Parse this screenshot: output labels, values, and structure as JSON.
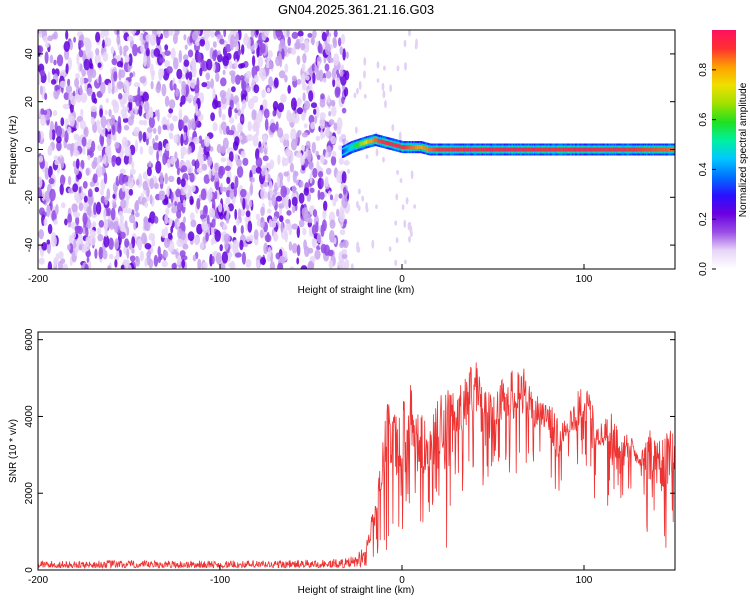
{
  "title": "GN04.2025.361.21.16.G03",
  "colors": {
    "snr_line": "#ee3333",
    "colorbar_stops": [
      "#ffffff",
      "#e8d6f8",
      "#9a4fe6",
      "#6a00e0",
      "#2a10ff",
      "#0070ff",
      "#00c8ff",
      "#00f0a0",
      "#20e020",
      "#a0e000",
      "#f0e000",
      "#ffa000",
      "#ff3030",
      "#ff1060"
    ]
  },
  "colorbar": {
    "label": "Normalized spectral amplitude",
    "ticks": [
      0.0,
      0.2,
      0.4,
      0.6,
      0.8
    ],
    "tick_labels": [
      "0.0",
      "0.2",
      "0.4",
      "0.6",
      "0.8"
    ],
    "range": [
      0,
      0.96
    ]
  },
  "chart_data": [
    {
      "type": "heatmap",
      "title": "GN04.2025.361.21.16.G03",
      "xlabel": "Height of straight line (km)",
      "ylabel": "Frequency (Hz)",
      "xlim": [
        -200,
        150
      ],
      "ylim": [
        -50,
        50
      ],
      "xticks": [
        -200,
        -100,
        0,
        100
      ],
      "xtick_labels": [
        "-200",
        "-100",
        "0",
        "100"
      ],
      "yticks": [
        -40,
        -20,
        0,
        20,
        40
      ],
      "ytick_labels": [
        "-40",
        "-20",
        "0",
        "20",
        "40"
      ],
      "noise_region_x": [
        -200,
        -30
      ],
      "signal_track": {
        "x": [
          -33,
          -28,
          -20,
          -15,
          -10,
          -5,
          0,
          5,
          10,
          15,
          20,
          40,
          60,
          80,
          100,
          120,
          150
        ],
        "y": [
          -1,
          1,
          3,
          4,
          3,
          2,
          1,
          1,
          1,
          0,
          0,
          0,
          0,
          0,
          0,
          0,
          0
        ],
        "amplitude": [
          0.3,
          0.5,
          0.75,
          0.85,
          0.9,
          0.9,
          0.9,
          0.85,
          0.8,
          0.85,
          0.9,
          0.92,
          0.93,
          0.9,
          0.92,
          0.9,
          0.85
        ]
      }
    },
    {
      "type": "line",
      "xlabel": "Height of straight line (km)",
      "ylabel": "SNR (10 * v/v)",
      "xlim": [
        -200,
        150
      ],
      "ylim": [
        0,
        6200
      ],
      "xticks": [
        -200,
        -100,
        0,
        100
      ],
      "xtick_labels": [
        "-200",
        "-100",
        "0",
        "100"
      ],
      "yticks": [
        0,
        2000,
        4000,
        6000
      ],
      "ytick_labels": [
        "0",
        "2000",
        "4000",
        "6000"
      ],
      "series": [
        {
          "x": [
            -200,
            -180,
            -160,
            -140,
            -120,
            -100,
            -80,
            -60,
            -40,
            -30,
            -25,
            -20,
            -15,
            -12,
            -10,
            -8,
            -5,
            -2,
            0,
            2,
            5,
            8,
            10,
            15,
            20,
            25,
            30,
            35,
            40,
            45,
            50,
            55,
            60,
            65,
            70,
            75,
            80,
            85,
            90,
            95,
            100,
            105,
            110,
            115,
            120,
            125,
            130,
            135,
            140,
            145,
            150
          ],
          "values": [
            250,
            230,
            260,
            240,
            250,
            240,
            250,
            260,
            280,
            320,
            400,
            700,
            1800,
            2800,
            3600,
            4800,
            4200,
            3900,
            4600,
            4300,
            4900,
            4400,
            4100,
            3800,
            4500,
            4700,
            4600,
            5200,
            5600,
            4800,
            4500,
            5000,
            5200,
            5600,
            4800,
            4500,
            4300,
            4200,
            4000,
            4500,
            5000,
            4300,
            3900,
            4300,
            3500,
            3800,
            3000,
            3800,
            3300,
            3600,
            3700
          ],
          "min_values": [
            60,
            60,
            60,
            60,
            60,
            60,
            60,
            60,
            60,
            60,
            80,
            100,
            200,
            300,
            800,
            100,
            500,
            700,
            200,
            600,
            1000,
            100,
            500,
            1500,
            400,
            300,
            1800,
            2200,
            2500,
            1400,
            2600,
            2800,
            2300,
            2600,
            2200,
            3100,
            3000,
            1400,
            2900,
            2400,
            2700,
            1700,
            2500,
            1000,
            1400,
            2000,
            2500,
            800,
            1000,
            100,
            1200
          ]
        }
      ]
    }
  ]
}
